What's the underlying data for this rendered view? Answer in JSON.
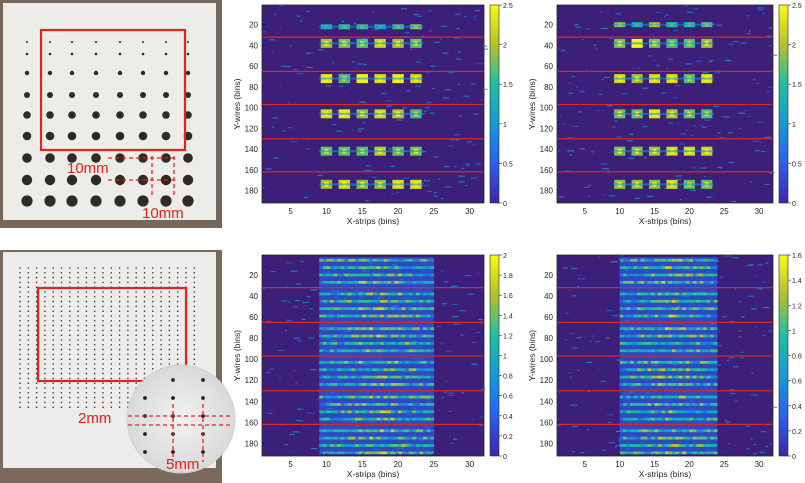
{
  "figure": {
    "annotations": {
      "top_pitch_x": "10mm",
      "top_pitch_y": "10mm",
      "bottom_pitch_x": "5mm",
      "bottom_pitch_y": "2mm"
    },
    "colors": {
      "frame": "#e8221b",
      "plate": "#ececea",
      "background_wood": "#7a6a5c",
      "heat_bg": "#3b1f78",
      "row_line": "#d32a2a"
    }
  },
  "chart_data": [
    {
      "type": "heatmap",
      "name": "top-middle",
      "xlabel": "X-strips (bins)",
      "ylabel": "Y-wires (bins)",
      "xticks": [
        "5",
        "10",
        "15",
        "20",
        "25",
        "30"
      ],
      "yticks": [
        "20",
        "40",
        "60",
        "80",
        "100",
        "120",
        "140",
        "160",
        "180"
      ],
      "xlim": [
        1,
        32
      ],
      "ylim": [
        192,
        1
      ],
      "colorbar": {
        "min": 0,
        "max": 2.5,
        "ticks": [
          "0",
          "0.5",
          "1",
          "1.5",
          "2",
          "2.5"
        ]
      },
      "red_lines_y": [
        32,
        65,
        97,
        130,
        162
      ],
      "spot_rows_y": [
        22,
        38,
        72,
        106,
        142,
        174
      ],
      "spot_cols_x": [
        10,
        12.5,
        15,
        17.5,
        20,
        22.5
      ]
    },
    {
      "type": "heatmap",
      "name": "top-right",
      "xlabel": "X-strips (bins)",
      "ylabel": "Y-wires (bins)",
      "xticks": [
        "5",
        "10",
        "15",
        "20",
        "25",
        "30"
      ],
      "yticks": [
        "20",
        "40",
        "60",
        "80",
        "100",
        "120",
        "140",
        "160",
        "180"
      ],
      "xlim": [
        1,
        32
      ],
      "ylim": [
        192,
        1
      ],
      "colorbar": {
        "min": 0,
        "max": 2.5,
        "ticks": [
          "0",
          "0.5",
          "1",
          "1.5",
          "2",
          "2.5"
        ]
      },
      "red_lines_y": [
        32,
        65,
        97,
        130,
        162
      ],
      "spot_rows_y": [
        20,
        38,
        72,
        106,
        142,
        174
      ],
      "spot_cols_x": [
        10,
        12.5,
        15,
        17.5,
        20,
        22.5
      ]
    },
    {
      "type": "heatmap",
      "name": "bottom-middle",
      "xlabel": "X-strips (bins)",
      "ylabel": "Y-wires (bins)",
      "xticks": [
        "5",
        "10",
        "15",
        "20",
        "25",
        "30"
      ],
      "yticks": [
        "20",
        "40",
        "60",
        "80",
        "100",
        "120",
        "140",
        "160",
        "180"
      ],
      "xlim": [
        1,
        32
      ],
      "ylim": [
        192,
        1
      ],
      "colorbar": {
        "min": 0,
        "max": 2,
        "ticks": [
          "0",
          "0.2",
          "0.4",
          "0.6",
          "0.8",
          "1",
          "1.2",
          "1.4",
          "1.6",
          "1.8",
          "2"
        ]
      },
      "red_lines_y": [
        32,
        65,
        97,
        130,
        162
      ],
      "stripe_rows_y": [
        6,
        13,
        20,
        27,
        38,
        45,
        52,
        59,
        71,
        78,
        85,
        92,
        103,
        110,
        117,
        124,
        136,
        143,
        150,
        157,
        168,
        175,
        182,
        189
      ],
      "stripe_x_range": [
        9,
        25
      ]
    },
    {
      "type": "heatmap",
      "name": "bottom-right",
      "xlabel": "X-strips (bins)",
      "ylabel": "Y-wires (bins)",
      "xticks": [
        "5",
        "10",
        "15",
        "20",
        "25",
        "30"
      ],
      "yticks": [
        "20",
        "40",
        "60",
        "80",
        "100",
        "120",
        "140",
        "160",
        "180"
      ],
      "xlim": [
        1,
        32
      ],
      "ylim": [
        192,
        1
      ],
      "colorbar": {
        "min": 0,
        "max": 1.6,
        "ticks": [
          "0",
          "0.2",
          "0.4",
          "0.6",
          "0.8",
          "1",
          "1.2",
          "1.4",
          "1.6"
        ]
      },
      "red_lines_y": [
        32,
        65,
        97,
        130,
        162
      ],
      "stripe_rows_y": [
        6,
        13,
        20,
        27,
        38,
        45,
        52,
        59,
        71,
        78,
        85,
        92,
        103,
        110,
        117,
        124,
        136,
        143,
        150,
        157,
        168,
        175,
        182,
        189
      ],
      "stripe_x_range": [
        10,
        24
      ]
    }
  ]
}
